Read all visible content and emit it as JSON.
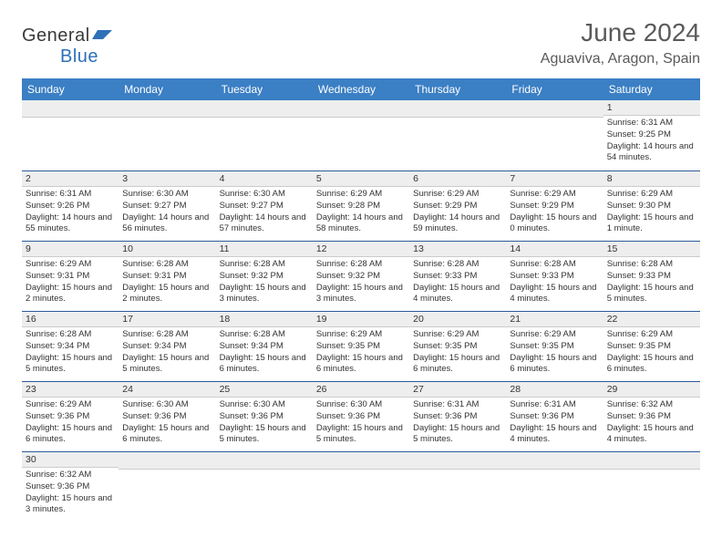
{
  "brand": {
    "name_a": "General",
    "name_b": "Blue"
  },
  "title": "June 2024",
  "location": "Aguaviva, Aragon, Spain",
  "colors": {
    "header_bg": "#3b7fc4",
    "header_fg": "#ffffff",
    "cell_rule": "#2d5b9a",
    "daynum_bg": "#eeeeee",
    "brand_blue": "#2d70b7"
  },
  "weekdays": [
    "Sunday",
    "Monday",
    "Tuesday",
    "Wednesday",
    "Thursday",
    "Friday",
    "Saturday"
  ],
  "weeks": [
    [
      null,
      null,
      null,
      null,
      null,
      null,
      {
        "n": "1",
        "sr": "Sunrise: 6:31 AM",
        "ss": "Sunset: 9:25 PM",
        "dl": "Daylight: 14 hours and 54 minutes."
      }
    ],
    [
      {
        "n": "2",
        "sr": "Sunrise: 6:31 AM",
        "ss": "Sunset: 9:26 PM",
        "dl": "Daylight: 14 hours and 55 minutes."
      },
      {
        "n": "3",
        "sr": "Sunrise: 6:30 AM",
        "ss": "Sunset: 9:27 PM",
        "dl": "Daylight: 14 hours and 56 minutes."
      },
      {
        "n": "4",
        "sr": "Sunrise: 6:30 AM",
        "ss": "Sunset: 9:27 PM",
        "dl": "Daylight: 14 hours and 57 minutes."
      },
      {
        "n": "5",
        "sr": "Sunrise: 6:29 AM",
        "ss": "Sunset: 9:28 PM",
        "dl": "Daylight: 14 hours and 58 minutes."
      },
      {
        "n": "6",
        "sr": "Sunrise: 6:29 AM",
        "ss": "Sunset: 9:29 PM",
        "dl": "Daylight: 14 hours and 59 minutes."
      },
      {
        "n": "7",
        "sr": "Sunrise: 6:29 AM",
        "ss": "Sunset: 9:29 PM",
        "dl": "Daylight: 15 hours and 0 minutes."
      },
      {
        "n": "8",
        "sr": "Sunrise: 6:29 AM",
        "ss": "Sunset: 9:30 PM",
        "dl": "Daylight: 15 hours and 1 minute."
      }
    ],
    [
      {
        "n": "9",
        "sr": "Sunrise: 6:29 AM",
        "ss": "Sunset: 9:31 PM",
        "dl": "Daylight: 15 hours and 2 minutes."
      },
      {
        "n": "10",
        "sr": "Sunrise: 6:28 AM",
        "ss": "Sunset: 9:31 PM",
        "dl": "Daylight: 15 hours and 2 minutes."
      },
      {
        "n": "11",
        "sr": "Sunrise: 6:28 AM",
        "ss": "Sunset: 9:32 PM",
        "dl": "Daylight: 15 hours and 3 minutes."
      },
      {
        "n": "12",
        "sr": "Sunrise: 6:28 AM",
        "ss": "Sunset: 9:32 PM",
        "dl": "Daylight: 15 hours and 3 minutes."
      },
      {
        "n": "13",
        "sr": "Sunrise: 6:28 AM",
        "ss": "Sunset: 9:33 PM",
        "dl": "Daylight: 15 hours and 4 minutes."
      },
      {
        "n": "14",
        "sr": "Sunrise: 6:28 AM",
        "ss": "Sunset: 9:33 PM",
        "dl": "Daylight: 15 hours and 4 minutes."
      },
      {
        "n": "15",
        "sr": "Sunrise: 6:28 AM",
        "ss": "Sunset: 9:33 PM",
        "dl": "Daylight: 15 hours and 5 minutes."
      }
    ],
    [
      {
        "n": "16",
        "sr": "Sunrise: 6:28 AM",
        "ss": "Sunset: 9:34 PM",
        "dl": "Daylight: 15 hours and 5 minutes."
      },
      {
        "n": "17",
        "sr": "Sunrise: 6:28 AM",
        "ss": "Sunset: 9:34 PM",
        "dl": "Daylight: 15 hours and 5 minutes."
      },
      {
        "n": "18",
        "sr": "Sunrise: 6:28 AM",
        "ss": "Sunset: 9:34 PM",
        "dl": "Daylight: 15 hours and 6 minutes."
      },
      {
        "n": "19",
        "sr": "Sunrise: 6:29 AM",
        "ss": "Sunset: 9:35 PM",
        "dl": "Daylight: 15 hours and 6 minutes."
      },
      {
        "n": "20",
        "sr": "Sunrise: 6:29 AM",
        "ss": "Sunset: 9:35 PM",
        "dl": "Daylight: 15 hours and 6 minutes."
      },
      {
        "n": "21",
        "sr": "Sunrise: 6:29 AM",
        "ss": "Sunset: 9:35 PM",
        "dl": "Daylight: 15 hours and 6 minutes."
      },
      {
        "n": "22",
        "sr": "Sunrise: 6:29 AM",
        "ss": "Sunset: 9:35 PM",
        "dl": "Daylight: 15 hours and 6 minutes."
      }
    ],
    [
      {
        "n": "23",
        "sr": "Sunrise: 6:29 AM",
        "ss": "Sunset: 9:36 PM",
        "dl": "Daylight: 15 hours and 6 minutes."
      },
      {
        "n": "24",
        "sr": "Sunrise: 6:30 AM",
        "ss": "Sunset: 9:36 PM",
        "dl": "Daylight: 15 hours and 6 minutes."
      },
      {
        "n": "25",
        "sr": "Sunrise: 6:30 AM",
        "ss": "Sunset: 9:36 PM",
        "dl": "Daylight: 15 hours and 5 minutes."
      },
      {
        "n": "26",
        "sr": "Sunrise: 6:30 AM",
        "ss": "Sunset: 9:36 PM",
        "dl": "Daylight: 15 hours and 5 minutes."
      },
      {
        "n": "27",
        "sr": "Sunrise: 6:31 AM",
        "ss": "Sunset: 9:36 PM",
        "dl": "Daylight: 15 hours and 5 minutes."
      },
      {
        "n": "28",
        "sr": "Sunrise: 6:31 AM",
        "ss": "Sunset: 9:36 PM",
        "dl": "Daylight: 15 hours and 4 minutes."
      },
      {
        "n": "29",
        "sr": "Sunrise: 6:32 AM",
        "ss": "Sunset: 9:36 PM",
        "dl": "Daylight: 15 hours and 4 minutes."
      }
    ],
    [
      {
        "n": "30",
        "sr": "Sunrise: 6:32 AM",
        "ss": "Sunset: 9:36 PM",
        "dl": "Daylight: 15 hours and 3 minutes."
      },
      null,
      null,
      null,
      null,
      null,
      null
    ]
  ]
}
